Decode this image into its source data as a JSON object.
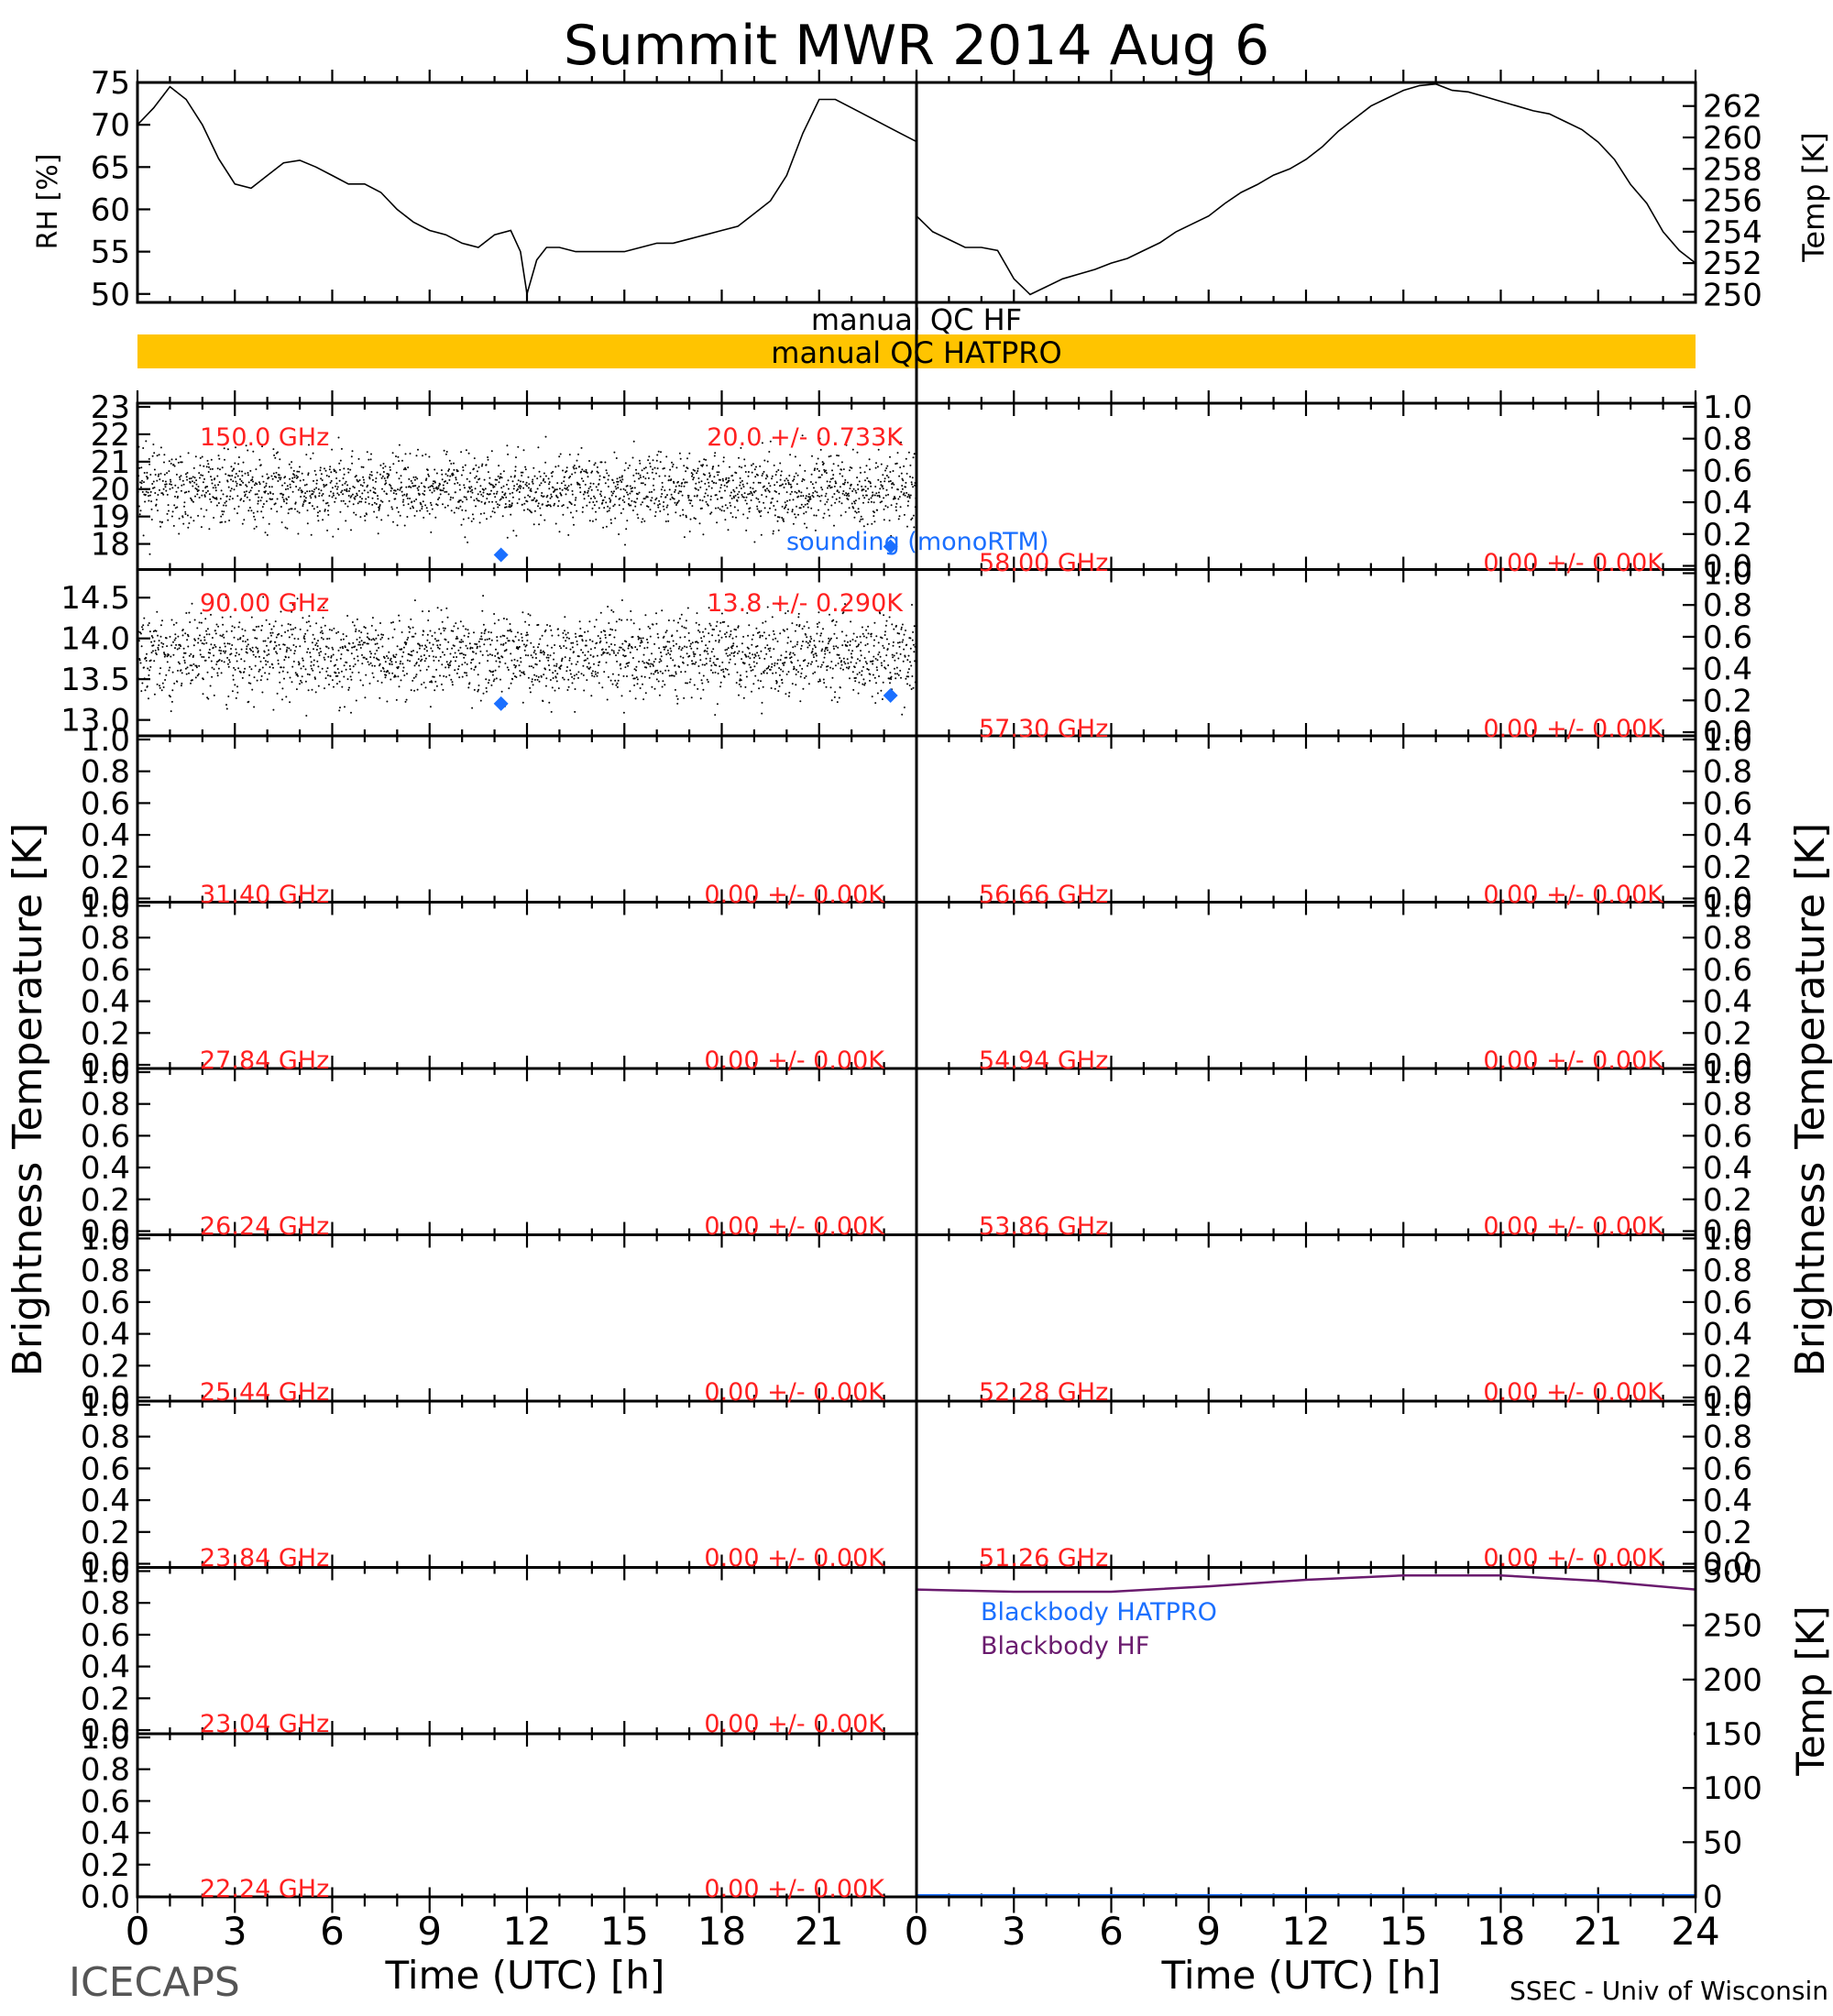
{
  "figure": {
    "title": "Summit MWR 2014 Aug  6",
    "footer_left": "ICECAPS",
    "footer_right": "SSEC - Univ of Wisconsin",
    "xlabel": "Time (UTC) [h]",
    "ylabel_main": "Brightness Temperature [K]"
  },
  "colors": {
    "trace": "#000000",
    "label_red": "#ff2020",
    "sounding_blue": "#1a6fff",
    "qc_bar": "#ffc400",
    "bb_hf": "#6a1b6e",
    "bb_hatpro": "#1a6fff"
  },
  "qc": {
    "hf": "manual  QC HF",
    "hatpro": "manual  QC HATPRO"
  },
  "legend": {
    "sounding": "sounding (monoRTM)",
    "bb_hatpro": "Blackbody HATPRO",
    "bb_hf": "Blackbody HF"
  },
  "chart_data": [
    {
      "id": "rh",
      "type": "line",
      "ylabel": "RH [%]",
      "xlim": [
        0,
        24
      ],
      "ylim": [
        49,
        75
      ],
      "yticks": [
        50,
        55,
        60,
        65,
        70,
        75
      ],
      "x": [
        0,
        0.5,
        1,
        1.5,
        2,
        2.5,
        3,
        3.5,
        4,
        4.5,
        5,
        5.5,
        6,
        6.5,
        7,
        7.5,
        8,
        8.5,
        9,
        9.5,
        10,
        10.5,
        11,
        11.5,
        11.8,
        12,
        12.3,
        12.6,
        13,
        13.5,
        14,
        14.5,
        15,
        15.5,
        16,
        16.5,
        17,
        17.5,
        18,
        18.5,
        19,
        19.5,
        20,
        20.5,
        21,
        21.5,
        22,
        22.5,
        23,
        23.5,
        24
      ],
      "y": [
        70,
        72,
        74.5,
        73,
        70,
        66,
        63,
        62.5,
        64,
        65.5,
        65.8,
        65,
        64,
        63,
        63,
        62,
        60,
        58.5,
        57.5,
        57,
        56,
        55.5,
        57,
        57.5,
        55,
        50,
        54,
        55.5,
        55.5,
        55,
        55,
        55,
        55,
        55.5,
        56,
        56,
        56.5,
        57,
        57.5,
        58,
        59.5,
        61,
        64,
        69,
        73,
        73,
        72,
        71,
        70,
        69,
        68
      ]
    },
    {
      "id": "temp",
      "type": "line",
      "ylabel": "Temp [K]",
      "xlim": [
        0,
        24
      ],
      "ylim": [
        249.5,
        263.5
      ],
      "yticks": [
        250,
        252,
        254,
        256,
        258,
        260,
        262
      ],
      "x": [
        0,
        0.5,
        1,
        1.5,
        2,
        2.5,
        3,
        3.5,
        4,
        4.5,
        5,
        5.5,
        6,
        6.5,
        7,
        7.5,
        8,
        8.5,
        9,
        9.5,
        10,
        10.5,
        11,
        11.5,
        12,
        12.5,
        13,
        13.5,
        14,
        14.5,
        15,
        15.5,
        16,
        16.5,
        17,
        17.5,
        18,
        18.5,
        19,
        19.5,
        20,
        20.5,
        21,
        21.5,
        22,
        22.5,
        23,
        23.5,
        24
      ],
      "y": [
        255,
        254,
        253.5,
        253,
        253,
        252.8,
        251,
        250,
        250.5,
        251,
        251.3,
        251.6,
        252,
        252.3,
        252.8,
        253.3,
        254,
        254.5,
        255,
        255.8,
        256.5,
        257,
        257.6,
        258,
        258.6,
        259.4,
        260.4,
        261.2,
        262,
        262.5,
        263,
        263.3,
        263.4,
        263,
        262.9,
        262.6,
        262.3,
        262,
        261.7,
        261.5,
        261,
        260.5,
        259.7,
        258.6,
        257,
        255.8,
        254,
        252.8,
        252
      ]
    },
    {
      "id": "bt150",
      "type": "scatter",
      "channel": "150.0 GHz",
      "stats": "20.0 +/- 0.733K",
      "xlim": [
        0,
        24
      ],
      "ylim": [
        17.2,
        23
      ],
      "yticks": [
        18,
        19,
        20,
        21,
        22,
        23
      ],
      "mean": 20.0,
      "std": 0.733,
      "sounding": {
        "x": [
          11.2,
          23.2
        ],
        "y": [
          17.6,
          17.9
        ]
      }
    },
    {
      "id": "bt90",
      "type": "scatter",
      "channel": "90.00 GHz",
      "stats": "13.8 +/- 0.290K",
      "xlim": [
        0,
        24
      ],
      "ylim": [
        12.85,
        14.8
      ],
      "yticks": [
        13.0,
        13.5,
        14.0,
        14.5
      ],
      "mean": 13.8,
      "std": 0.29,
      "sounding": {
        "x": [
          11.2,
          23.2
        ],
        "y": [
          13.2,
          13.3
        ]
      }
    },
    {
      "id": "bb",
      "type": "line",
      "ylabel": "Temp [K]",
      "xlim": [
        0,
        24
      ],
      "ylim": [
        0,
        300
      ],
      "yticks": [
        0,
        50,
        100,
        150,
        200,
        250,
        300
      ],
      "x": [
        0,
        3,
        6,
        9,
        12,
        15,
        18,
        21,
        24
      ],
      "hf": [
        283,
        281,
        281,
        286,
        292,
        296,
        296,
        291,
        283
      ],
      "hatpro": [
        1,
        1,
        1,
        1,
        1,
        1,
        1,
        1,
        1
      ]
    }
  ],
  "empty_panels": {
    "left": [
      {
        "channel": "31.40 GHz",
        "stats": "0.00 +/- 0.00K"
      },
      {
        "channel": "27.84 GHz",
        "stats": "0.00 +/- 0.00K"
      },
      {
        "channel": "26.24 GHz",
        "stats": "0.00 +/- 0.00K"
      },
      {
        "channel": "25.44 GHz",
        "stats": "0.00 +/- 0.00K"
      },
      {
        "channel": "23.84 GHz",
        "stats": "0.00 +/- 0.00K"
      },
      {
        "channel": "23.04 GHz",
        "stats": "0.00 +/- 0.00K"
      },
      {
        "channel": "22.24 GHz",
        "stats": "0.00 +/- 0.00K"
      }
    ],
    "right": [
      {
        "channel": "58.00 GHz",
        "stats": "0.00 +/- 0.00K"
      },
      {
        "channel": "57.30 GHz",
        "stats": "0.00 +/- 0.00K"
      },
      {
        "channel": "56.66 GHz",
        "stats": "0.00 +/- 0.00K"
      },
      {
        "channel": "54.94 GHz",
        "stats": "0.00 +/- 0.00K"
      },
      {
        "channel": "53.86 GHz",
        "stats": "0.00 +/- 0.00K"
      },
      {
        "channel": "52.28 GHz",
        "stats": "0.00 +/- 0.00K"
      },
      {
        "channel": "51.26 GHz",
        "stats": "0.00 +/- 0.00K"
      }
    ],
    "yticks": [
      "0.0",
      "0.2",
      "0.4",
      "0.6",
      "0.8",
      "1.0"
    ]
  },
  "xticks": [
    "0",
    "3",
    "6",
    "9",
    "12",
    "15",
    "18",
    "21"
  ],
  "xticks_right": [
    "0",
    "3",
    "6",
    "9",
    "12",
    "15",
    "18",
    "21",
    "24"
  ]
}
